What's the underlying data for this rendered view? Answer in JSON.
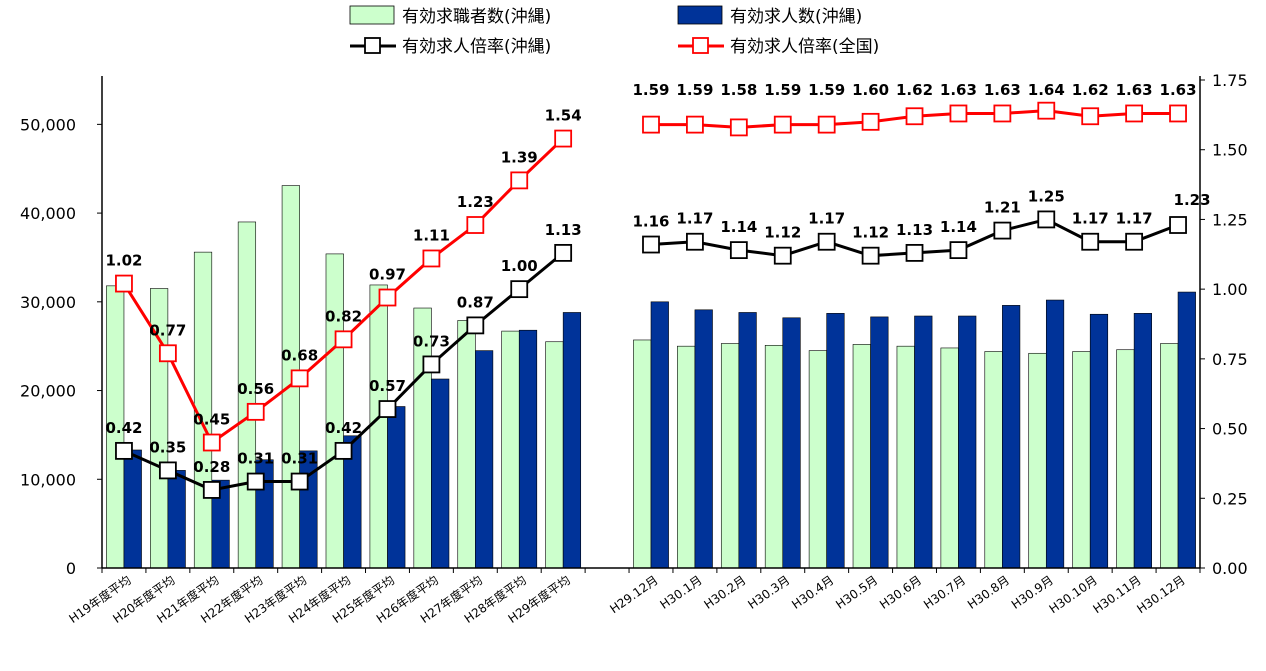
{
  "chart_data": {
    "type": "bar",
    "categories": [
      "H19年度平均",
      "H20年度平均",
      "H21年度平均",
      "H22年度平均",
      "H23年度平均",
      "H24年度平均",
      "H25年度平均",
      "H26年度平均",
      "H27年度平均",
      "H28年度平均",
      "H29年度平均",
      "",
      "H29.12月",
      "H30.1月",
      "H30.2月",
      "H30.3月",
      "H30.4月",
      "H30.5月",
      "H30.6月",
      "H30.7月",
      "H30.8月",
      "H30.9月",
      "H30.10月",
      "H30.11月",
      "H30.12月"
    ],
    "y_left": {
      "ylim": [
        0,
        55000
      ],
      "ticks": [
        0,
        10000,
        20000,
        30000,
        40000,
        50000
      ],
      "tick_labels": [
        "0",
        "10,000",
        "20,000",
        "30,000",
        "40,000",
        "50,000"
      ]
    },
    "y_right": {
      "ylim": [
        0,
        1.75
      ],
      "ticks": [
        0,
        0.25,
        0.5,
        0.75,
        1.0,
        1.25,
        1.5,
        1.75
      ],
      "tick_labels": [
        "0.00",
        "0.25",
        "0.50",
        "0.75",
        "1.00",
        "1.25",
        "1.50",
        "1.75"
      ]
    },
    "grid": false,
    "legend_position": "top",
    "series": [
      {
        "name": "有効求職者数(沖縄)",
        "kind": "bar",
        "axis": "left",
        "color": "#ccffcc",
        "values": [
          31800,
          31500,
          35600,
          39000,
          43100,
          35400,
          31900,
          29300,
          27900,
          26700,
          25500,
          null,
          25700,
          25000,
          25300,
          25100,
          24500,
          25200,
          25000,
          24800,
          24400,
          24200,
          24400,
          24600,
          25300
        ]
      },
      {
        "name": "有効求人数(沖縄)",
        "kind": "bar",
        "axis": "left",
        "color": "#003399",
        "values": [
          13300,
          11000,
          9900,
          12200,
          13200,
          14900,
          18200,
          21300,
          24500,
          26800,
          28800,
          null,
          30000,
          29100,
          28800,
          28200,
          28700,
          28300,
          28400,
          28400,
          29600,
          30200,
          28600,
          28700,
          31100
        ]
      },
      {
        "name": "有効求人倍率(沖縄)",
        "kind": "line",
        "axis": "right",
        "color": "#000000",
        "values": [
          0.42,
          0.35,
          0.28,
          0.31,
          0.31,
          0.42,
          0.57,
          0.73,
          0.87,
          1.0,
          1.13,
          null,
          1.16,
          1.17,
          1.14,
          1.12,
          1.17,
          1.12,
          1.13,
          1.14,
          1.21,
          1.25,
          1.17,
          1.17,
          1.23
        ],
        "labels": [
          "0.42",
          "0.35",
          "0.28",
          "0.31",
          "0.31",
          "0.42",
          "0.57",
          "0.73",
          "0.87",
          "1.00",
          "1.13",
          "",
          "1.16",
          "1.17",
          "1.14",
          "1.12",
          "1.17",
          "1.12",
          "1.13",
          "1.14",
          "1.21",
          "1.25",
          "1.17",
          "1.17",
          "1.23"
        ],
        "highlight_last_color": "#ff0000"
      },
      {
        "name": "有効求人倍率(全国)",
        "kind": "line",
        "axis": "right",
        "color": "#ff0000",
        "values": [
          1.02,
          0.77,
          0.45,
          0.56,
          0.68,
          0.82,
          0.97,
          1.11,
          1.23,
          1.39,
          1.54,
          null,
          1.59,
          1.59,
          1.58,
          1.59,
          1.59,
          1.6,
          1.62,
          1.63,
          1.63,
          1.64,
          1.62,
          1.63,
          1.63
        ],
        "labels": [
          "1.02",
          "0.77",
          "0.45",
          "0.56",
          "0.68",
          "0.82",
          "0.97",
          "1.11",
          "1.23",
          "1.39",
          "1.54",
          "",
          "1.59",
          "1.59",
          "1.58",
          "1.59",
          "1.59",
          "1.60",
          "1.62",
          "1.63",
          "1.63",
          "1.64",
          "1.62",
          "1.63",
          "1.63"
        ]
      }
    ]
  }
}
